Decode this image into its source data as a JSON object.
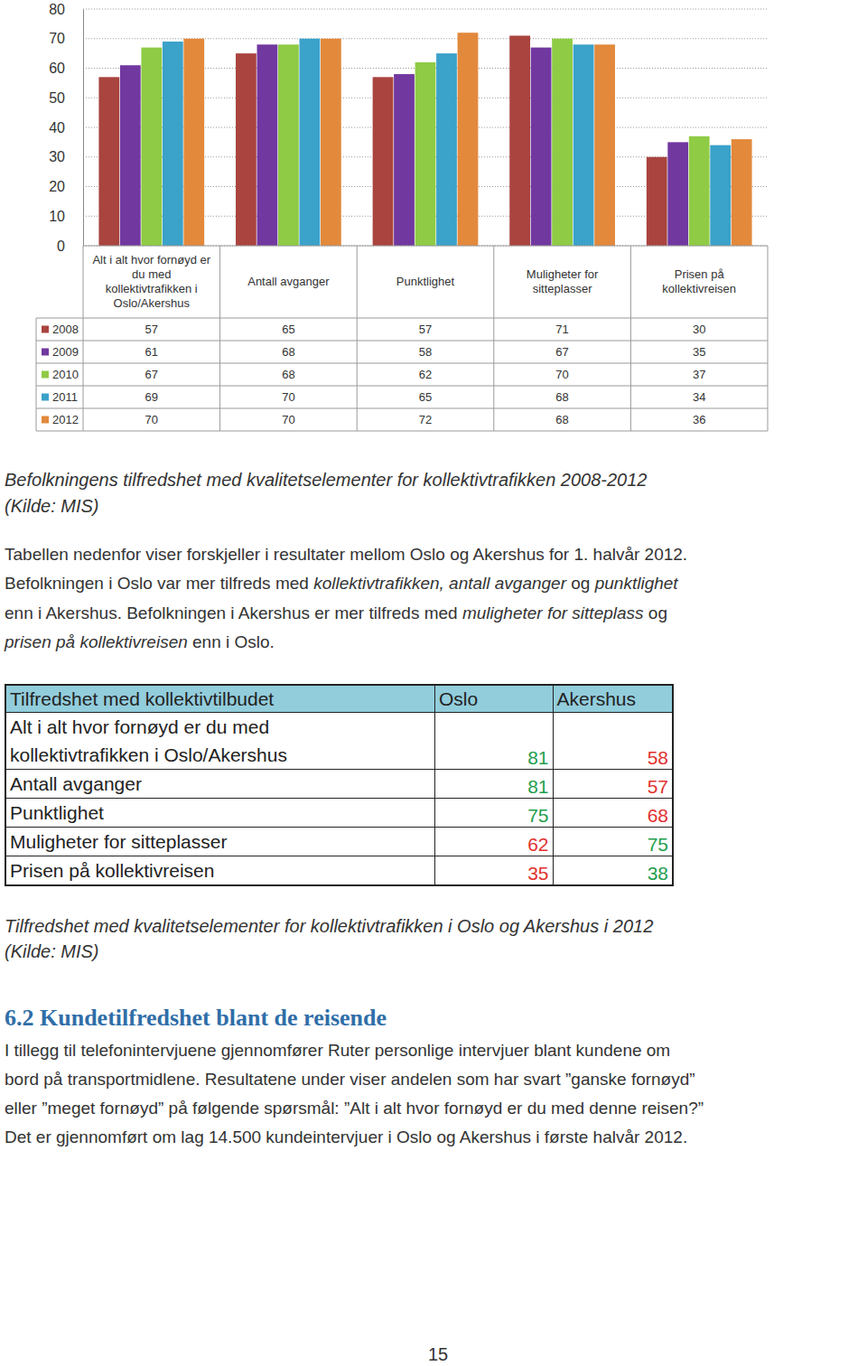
{
  "chart_data": {
    "type": "bar",
    "categories": [
      "Alt i alt hvor fornøyd er du med kollektivtrafikken i Oslo/Akershus",
      "Antall avganger",
      "Punktlighet",
      "Muligheter for sitteplasser",
      "Prisen på kollektivreisen"
    ],
    "series": [
      {
        "name": "2008",
        "color": "#a9443f",
        "values": [
          57,
          65,
          57,
          71,
          30
        ]
      },
      {
        "name": "2009",
        "color": "#7138a0",
        "values": [
          61,
          68,
          58,
          67,
          35
        ]
      },
      {
        "name": "2010",
        "color": "#8fcb45",
        "values": [
          67,
          68,
          62,
          70,
          37
        ]
      },
      {
        "name": "2011",
        "color": "#3ba2c9",
        "values": [
          69,
          70,
          65,
          68,
          34
        ]
      },
      {
        "name": "2012",
        "color": "#e2893c",
        "values": [
          70,
          70,
          72,
          68,
          36
        ]
      }
    ],
    "ylim": [
      0,
      80
    ],
    "yticks": [
      0,
      10,
      20,
      30,
      40,
      50,
      60,
      70,
      80
    ],
    "grid": true
  },
  "chart_caption": [
    "Befolkningens tilfredshet med kvalitetselementer for kollektivtrafikken 2008-2012",
    "(Kilde: MIS)"
  ],
  "paragraph": [
    [
      {
        "text": "Tabellen nedenfor viser forskjeller i resultater mellom Oslo og Akershus for 1. halvår 2012.",
        "italic": false
      }
    ],
    [
      {
        "text": "Befolkningen i Oslo var mer tilfreds med ",
        "italic": false
      },
      {
        "text": "kollektivtrafikken, antall avganger",
        "italic": true
      },
      {
        "text": " og ",
        "italic": false
      },
      {
        "text": "punktlighet",
        "italic": true
      }
    ],
    [
      {
        "text": "enn i Akershus. Befolkningen i Akershus er mer tilfreds med ",
        "italic": false
      },
      {
        "text": "muligheter for sitteplass",
        "italic": true
      },
      {
        "text": " og",
        "italic": false
      }
    ],
    [
      {
        "text": "prisen på kollektivreisen",
        "italic": true
      },
      {
        "text": " enn i Oslo.",
        "italic": false
      }
    ]
  ],
  "table": {
    "header": [
      "Tilfredshet med kollektivtilbudet",
      "Oslo",
      "Akershus"
    ],
    "rows": [
      [
        "Alt i alt hvor fornøyd er du med kollektivtrafikken i Oslo/Akershus",
        81,
        58
      ],
      [
        "Antall avganger",
        81,
        57
      ],
      [
        "Punktlighet",
        75,
        68
      ],
      [
        "Muligheter for sitteplasser",
        62,
        75
      ],
      [
        "Prisen på kollektivreisen",
        35,
        38
      ]
    ]
  },
  "table_caption": [
    "Tilfredshet med kvalitetselementer for kollektivtrafikken i Oslo og Akershus i 2012",
    "(Kilde: MIS)"
  ],
  "section": {
    "number": "6.2",
    "title": "Kundetilfredshet blant de reisende"
  },
  "section_text": [
    "I tillegg til telefonintervjuene gjennomfører Ruter personlige intervjuer blant kundene om",
    "bord på transportmidlene. Resultatene under viser andelen som har svart ”ganske fornøyd”",
    "eller ”meget fornøyd” på følgende spørsmål: ”Alt i alt hvor fornøyd er du med denne reisen?”",
    "Det er gjennomført om lag 14.500 kundeintervjuer i Oslo og Akershus i første halvår 2012."
  ],
  "page_number": "15"
}
